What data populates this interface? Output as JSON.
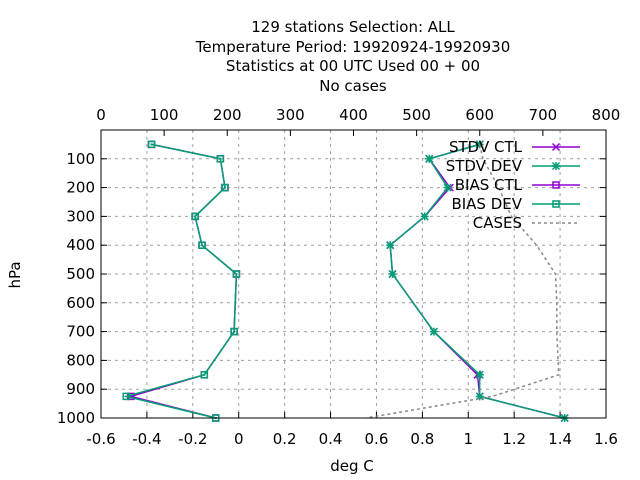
{
  "chart_data": {
    "type": "line",
    "title_lines": [
      "129 stations Selection: ALL",
      "Temperature  Period: 19920924-19920930",
      "Statistics at 00 UTC  Used  00 + 00",
      "No cases"
    ],
    "xlabel": "deg C",
    "ylabel": "hPa",
    "xlim": [
      -0.6,
      1.6
    ],
    "x_ticks": [
      "-0.6",
      "-0.4",
      "-0.2",
      "0",
      "0.2",
      "0.4",
      "0.6",
      "0.8",
      "1",
      "1.2",
      "1.4",
      "1.6"
    ],
    "x2lim": [
      0,
      800
    ],
    "x2_ticks": [
      "0",
      "100",
      "200",
      "300",
      "400",
      "500",
      "600",
      "700",
      "800"
    ],
    "ylim": [
      1000,
      0
    ],
    "y_ticks": [
      "100",
      "200",
      "300",
      "400",
      "500",
      "600",
      "700",
      "800",
      "900",
      "1000"
    ],
    "grid": true,
    "legend_position": "top-right",
    "levels": [
      50,
      100,
      200,
      300,
      400,
      500,
      700,
      850,
      925,
      1000
    ],
    "series": [
      {
        "name": "STDV CTL",
        "axis": "x1",
        "marker": "x",
        "color": "#9400d3",
        "values": [
          1.05,
          0.83,
          0.92,
          0.81,
          0.66,
          0.67,
          0.85,
          1.04,
          1.05,
          1.42
        ]
      },
      {
        "name": "STDV DEV",
        "axis": "x1",
        "marker": "asterisk",
        "color": "#009e73",
        "values": [
          1.05,
          0.83,
          0.91,
          0.81,
          0.66,
          0.67,
          0.85,
          1.05,
          1.05,
          1.42
        ]
      },
      {
        "name": "BIAS CTL",
        "axis": "x1",
        "marker": "square",
        "color": "#9400d3",
        "values": [
          -0.38,
          -0.08,
          -0.06,
          -0.19,
          -0.16,
          -0.01,
          -0.02,
          -0.15,
          -0.47,
          -0.1
        ]
      },
      {
        "name": "BIAS DEV",
        "axis": "x1",
        "marker": "square-dot",
        "color": "#009e73",
        "values": [
          -0.38,
          -0.08,
          -0.06,
          -0.19,
          -0.16,
          -0.01,
          -0.02,
          -0.15,
          -0.49,
          -0.1
        ]
      },
      {
        "name": "CASES",
        "axis": "x2",
        "marker": "none",
        "color": "#888888",
        "dash": true,
        "points": [
          [
            600,
            50
          ],
          [
            605,
            100
          ],
          [
            630,
            200
          ],
          [
            650,
            300
          ],
          [
            690,
            400
          ],
          [
            720,
            500
          ],
          [
            722,
            600
          ],
          [
            722,
            700
          ],
          [
            725,
            850
          ],
          [
            620,
            925
          ],
          [
            420,
            1000
          ]
        ]
      }
    ]
  }
}
